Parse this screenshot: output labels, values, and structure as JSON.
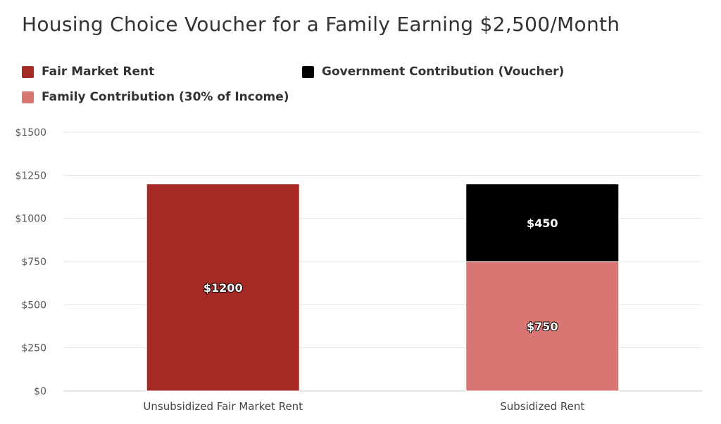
{
  "chart_data": {
    "type": "bar",
    "stacked": true,
    "title": "Housing Choice Voucher for a Family Earning $2,500/Month",
    "categories": [
      "Unsubsidized Fair Market Rent",
      "Subsidized Rent"
    ],
    "series": [
      {
        "name": "Fair Market Rent",
        "color": "#a52a25",
        "values": [
          1200,
          null
        ],
        "labels": [
          "$1200",
          ""
        ]
      },
      {
        "name": "Family Contribution (30% of Income)",
        "color": "#d77672",
        "values": [
          null,
          750
        ],
        "labels": [
          "",
          "$750"
        ]
      },
      {
        "name": "Government Contribution (Voucher)",
        "color": "#000000",
        "values": [
          null,
          450
        ],
        "labels": [
          "",
          "$450"
        ]
      }
    ],
    "legend_order": [
      "Fair Market Rent",
      "Government Contribution (Voucher)",
      "Family Contribution (30% of Income)"
    ],
    "legend_placement": "top-left",
    "ylim": [
      0,
      1500
    ],
    "yticks": [
      0,
      250,
      500,
      750,
      1000,
      1250,
      1500
    ],
    "ytick_labels": [
      "$0",
      "$250",
      "$500",
      "$750",
      "$1000",
      "$1250",
      "$1500"
    ],
    "grid": true,
    "xlabel": "",
    "ylabel": ""
  }
}
